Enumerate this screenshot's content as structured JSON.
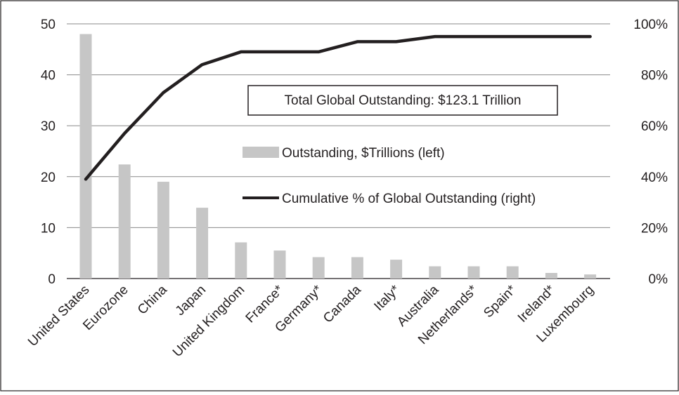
{
  "chart_data": {
    "type": "bar",
    "categories": [
      "United States",
      "Eurozone",
      "China",
      "Japan",
      "United Kingdom",
      "France*",
      "Germany*",
      "Canada",
      "Italy*",
      "Australia",
      "Netherlands*",
      "Spain*",
      "Ireland*",
      "Luxembourg"
    ],
    "series": [
      {
        "name": "Outstanding, $Trillions (left)",
        "type": "bar",
        "axis": "left",
        "color": "#c6c6c6",
        "values": [
          48.0,
          22.4,
          19.0,
          13.9,
          7.1,
          5.5,
          4.2,
          4.2,
          3.7,
          2.4,
          2.4,
          2.4,
          1.1,
          0.8
        ]
      },
      {
        "name": "Cumulative % of Global Outstanding (right)",
        "type": "line",
        "axis": "right",
        "color": "#231f20",
        "values": [
          39,
          57,
          73,
          84,
          89,
          89,
          89,
          93,
          93,
          95,
          95,
          95,
          95,
          95
        ]
      }
    ],
    "yaxis_left": {
      "ylim": [
        0,
        50
      ],
      "ticks": [
        "0",
        "10",
        "20",
        "30",
        "40",
        "50"
      ]
    },
    "yaxis_right": {
      "ylim": [
        0,
        100
      ],
      "ticks": [
        "0%",
        "20%",
        "40%",
        "60%",
        "80%",
        "100%"
      ]
    },
    "annotation": "Total Global Outstanding: $123.1 Trillion",
    "grid": "horizontal",
    "legend_position": "center-right"
  }
}
